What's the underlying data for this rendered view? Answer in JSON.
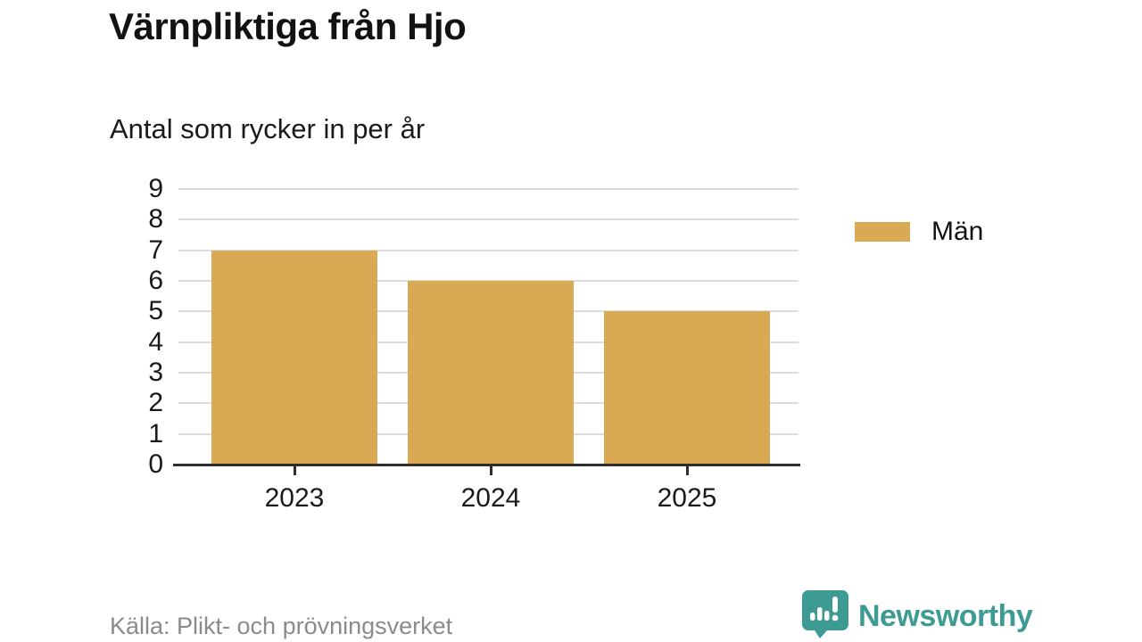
{
  "title": "Värnpliktiga från Hjo",
  "subtitle": "Antal som rycker in per år",
  "source": "Källa: Plikt- och prövningsverket",
  "brand": {
    "name": "Newsworthy",
    "color": "#3d9b94"
  },
  "colors": {
    "bar": "#d9a953",
    "grid": "#dcdcdc",
    "axis": "#2f2f2f",
    "text": "#1a1a1a",
    "muted": "#8b8b8b"
  },
  "legend": {
    "items": [
      {
        "label": "Män",
        "color": "#d9a953"
      }
    ]
  },
  "chart_data": {
    "type": "bar",
    "categories": [
      "2023",
      "2024",
      "2025"
    ],
    "series": [
      {
        "name": "Män",
        "values": [
          7,
          6,
          5
        ]
      }
    ],
    "title": "Värnpliktiga från Hjo",
    "subtitle": "Antal som rycker in per år",
    "xlabel": "",
    "ylabel": "",
    "ylim": [
      0,
      9
    ],
    "yticks": [
      0,
      1,
      2,
      3,
      4,
      5,
      6,
      7,
      8,
      9
    ],
    "grid": true,
    "legend_position": "right",
    "bar_color": "#d9a953"
  }
}
